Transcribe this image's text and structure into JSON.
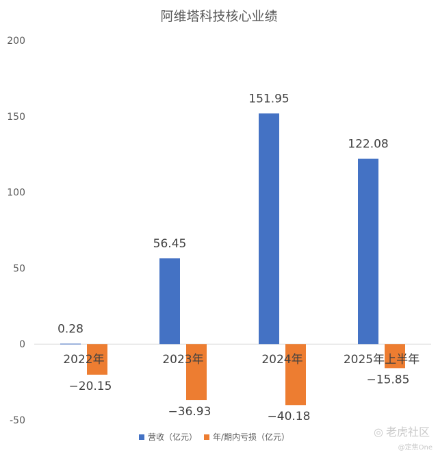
{
  "chart_data": {
    "type": "bar",
    "title": "阿维塔科技核心业绩",
    "categories": [
      "2022年",
      "2023年",
      "2024年",
      "2025年上半年"
    ],
    "series": [
      {
        "name": "营收（亿元）",
        "color": "#4472C4",
        "values": [
          0.28,
          56.45,
          151.95,
          122.08
        ],
        "labels": [
          "0.28",
          "56.45",
          "151.95",
          "122.08"
        ]
      },
      {
        "name": "年/期内亏损（亿元）",
        "color": "#ED7D31",
        "values": [
          -20.15,
          -36.93,
          -40.18,
          -15.85
        ],
        "labels": [
          "−20.15",
          "−36.93",
          "−40.18",
          "−15.85"
        ]
      }
    ],
    "ylim": [
      -50,
      200
    ],
    "yticks": [
      -50,
      0,
      50,
      100,
      150,
      200
    ],
    "grid": false,
    "legend": "bottom"
  },
  "watermark": {
    "main": "老虎社区",
    "sub": "@定焦One",
    "icon": "tiger-logo-icon"
  }
}
